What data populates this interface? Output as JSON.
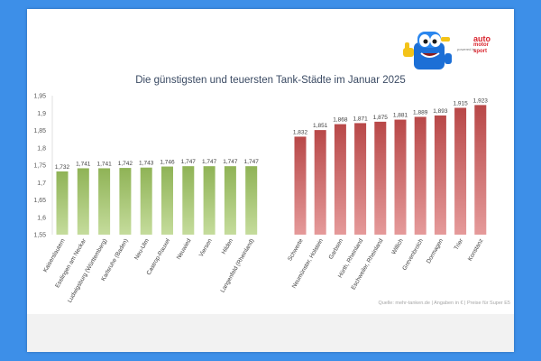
{
  "branding": {
    "powered_by": "powered by",
    "logo_line1": "auto",
    "logo_line2": "motor",
    "logo_line3": "sport",
    "logo_color": "#d9232d"
  },
  "source_note": "Quelle: mehr-tanken.de | Angaben in € | Preise für Super E5",
  "colors": {
    "green_bar": "#8fb356",
    "green_bar_light": "#c5dc9c",
    "red_bar": "#b84848",
    "red_bar_light": "#e59a9a",
    "title": "#3a4a63",
    "background": "#3d8fe8"
  },
  "chart_data": {
    "type": "bar",
    "title": "Die günstigsten und teuersten Tank-Städte im Januar 2025",
    "ylim": [
      1.55,
      1.95
    ],
    "yticks": [
      "1,55",
      "1,6",
      "1,65",
      "1,7",
      "1,75",
      "1,8",
      "1,85",
      "1,9",
      "1,95"
    ],
    "grid": false,
    "groups": [
      {
        "group": "cheapest",
        "categories": [
          "Kaiserslautern",
          "Esslingen am Neckar",
          "Ludwigsburg (Württemberg)",
          "Karlsruhe (Baden)",
          "Neu-Ulm",
          "Castrop-Rauxel",
          "Neuwied",
          "Viersen",
          "Hilden",
          "Langenfeld (Rheinland)"
        ],
        "values": [
          1.732,
          1.741,
          1.741,
          1.742,
          1.743,
          1.746,
          1.747,
          1.747,
          1.747,
          1.747
        ],
        "labels": [
          "1,732",
          "1,741",
          "1,741",
          "1,742",
          "1,743",
          "1,746",
          "1,747",
          "1,747",
          "1,747",
          "1,747"
        ]
      },
      {
        "group": "most_expensive",
        "categories": [
          "Schwerte",
          "Neumünster, Holstein",
          "Garbsen",
          "Hürth, Rheinland",
          "Eschweiler, Rheinland",
          "Willich",
          "Grevenbroich",
          "Dormagen",
          "Trier",
          "Konstanz"
        ],
        "values": [
          1.832,
          1.851,
          1.868,
          1.871,
          1.875,
          1.881,
          1.889,
          1.893,
          1.915,
          1.923
        ],
        "labels": [
          "1,832",
          "1,851",
          "1,868",
          "1,871",
          "1,875",
          "1,881",
          "1,889",
          "1,893",
          "1,915",
          "1,923"
        ]
      }
    ]
  }
}
